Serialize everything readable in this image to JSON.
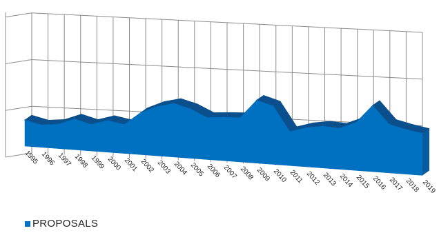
{
  "chart_data": {
    "type": "area",
    "x": [
      "1995",
      "1996",
      "1997",
      "1998",
      "1999",
      "2000",
      "2001",
      "2002",
      "2003",
      "2004",
      "2005",
      "2006",
      "2007",
      "2008",
      "2009",
      "2010",
      "2011",
      "2012",
      "2013",
      "2014",
      "2015",
      "2016",
      "2017",
      "2018",
      "2019"
    ],
    "series": [
      {
        "name": "PROPOSALS",
        "color": "#0070C0",
        "values": [
          56,
          48,
          52,
          66,
          57,
          68,
          62,
          90,
          106,
          115,
          106,
          90,
          93,
          95,
          135,
          125,
          73,
          84,
          90,
          88,
          103,
          142,
          104,
          96,
          90
        ]
      }
    ],
    "ylim": [
      0,
      300
    ],
    "y_gridlines": [
      100,
      200,
      300
    ],
    "grid": true,
    "projection": "3d",
    "legend_position": "bottom-left",
    "title": "",
    "xlabel": "",
    "ylabel": ""
  }
}
